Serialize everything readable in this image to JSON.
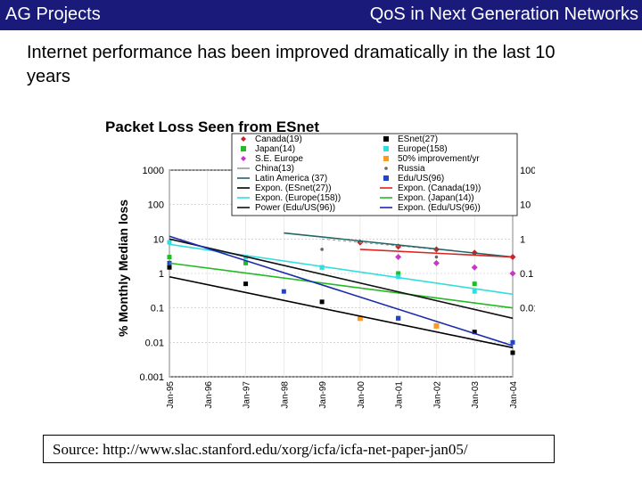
{
  "header": {
    "left": "AG Projects",
    "right": "QoS in Next Generation Networks"
  },
  "headline": "Internet performance has been improved dramatically in the last 10 years",
  "source": "Source: http://www.slac.stanford.edu/xorg/icfa/icfa-net-paper-jan05/",
  "chart_data": {
    "type": "scatter",
    "title": "Packet Loss Seen from ESnet",
    "ylabel": "% Monthly Median loss",
    "xlabel": "",
    "yscale": "log",
    "ylim": [
      0.001,
      1000
    ],
    "left_ticks": [
      "1000",
      "100",
      "10",
      "1",
      "0.1",
      "0.01",
      "0.001"
    ],
    "right_ticks": [
      "100",
      "10",
      "1",
      "0.1",
      "0.01"
    ],
    "x_ticks": [
      "Jan-95",
      "Jan-96",
      "Jan-97",
      "Jan-98",
      "Jan-99",
      "Jan-00",
      "Jan-01",
      "Jan-02",
      "Jan-03",
      "Jan-04"
    ],
    "grid": true,
    "legend_position": "top",
    "series": [
      {
        "name": "Canada(19)",
        "marker": "diamond",
        "color": "#cc2222",
        "values": [
          {
            "x": "Jan-00",
            "y": 8
          },
          {
            "x": "Jan-01",
            "y": 6
          },
          {
            "x": "Jan-02",
            "y": 5
          },
          {
            "x": "Jan-03",
            "y": 4
          },
          {
            "x": "Jan-04",
            "y": 3
          }
        ]
      },
      {
        "name": "ESnet(27)",
        "marker": "square",
        "color": "#000000",
        "values": [
          {
            "x": "Jan-95",
            "y": 1.5
          },
          {
            "x": "Jan-97",
            "y": 0.5
          },
          {
            "x": "Jan-99",
            "y": 0.15
          },
          {
            "x": "Jan-01",
            "y": 0.05
          },
          {
            "x": "Jan-03",
            "y": 0.02
          },
          {
            "x": "Jan-04",
            "y": 0.005
          }
        ]
      },
      {
        "name": "Japan(14)",
        "marker": "square",
        "color": "#22bb22",
        "values": [
          {
            "x": "Jan-95",
            "y": 3
          },
          {
            "x": "Jan-97",
            "y": 2
          },
          {
            "x": "Jan-99",
            "y": 1.5
          },
          {
            "x": "Jan-01",
            "y": 1
          },
          {
            "x": "Jan-03",
            "y": 0.5
          }
        ]
      },
      {
        "name": "Europe(158)",
        "marker": "square",
        "color": "#33dddd",
        "values": [
          {
            "x": "Jan-95",
            "y": 8
          },
          {
            "x": "Jan-97",
            "y": 3
          },
          {
            "x": "Jan-99",
            "y": 1.5
          },
          {
            "x": "Jan-01",
            "y": 0.8
          },
          {
            "x": "Jan-03",
            "y": 0.3
          }
        ]
      },
      {
        "name": "S.E. Europe",
        "marker": "diamond",
        "color": "#cc33cc",
        "values": [
          {
            "x": "Jan-01",
            "y": 3
          },
          {
            "x": "Jan-02",
            "y": 2
          },
          {
            "x": "Jan-03",
            "y": 1.5
          },
          {
            "x": "Jan-04",
            "y": 1
          }
        ]
      },
      {
        "name": "50% improvement/yr",
        "marker": "square",
        "color": "#ff9922",
        "values": [
          {
            "x": "Jan-00",
            "y": 0.05
          },
          {
            "x": "Jan-02",
            "y": 0.03
          }
        ]
      },
      {
        "name": "China(13)",
        "marker": "none",
        "color": "#999999",
        "values": [
          {
            "x": "Jan-99",
            "y": 10
          },
          {
            "x": "Jan-02",
            "y": 5
          }
        ]
      },
      {
        "name": "Russia",
        "marker": "dot",
        "color": "#666666",
        "values": [
          {
            "x": "Jan-99",
            "y": 5
          },
          {
            "x": "Jan-02",
            "y": 3
          }
        ]
      },
      {
        "name": "Latin America (37)",
        "marker": "line",
        "color": "#226666",
        "values": [
          {
            "x": "Jan-98",
            "y": 15
          },
          {
            "x": "Jan-04",
            "y": 3
          }
        ]
      },
      {
        "name": "Edu/US(96)",
        "marker": "square",
        "color": "#2244cc",
        "values": [
          {
            "x": "Jan-95",
            "y": 2
          },
          {
            "x": "Jan-98",
            "y": 0.3
          },
          {
            "x": "Jan-01",
            "y": 0.05
          },
          {
            "x": "Jan-04",
            "y": 0.01
          }
        ]
      },
      {
        "name": "Expon. (ESnet(27))",
        "marker": "line",
        "color": "#000000",
        "values": [
          {
            "x": "Jan-95",
            "y": 0.8
          },
          {
            "x": "Jan-04",
            "y": 0.007
          }
        ]
      },
      {
        "name": "Expon. (Canada(19))",
        "marker": "line",
        "color": "#dd2222",
        "values": [
          {
            "x": "Jan-00",
            "y": 5
          },
          {
            "x": "Jan-04",
            "y": 3
          }
        ]
      },
      {
        "name": "Expon. (Europe(158))",
        "marker": "line",
        "color": "#33dddd",
        "values": [
          {
            "x": "Jan-95",
            "y": 7
          },
          {
            "x": "Jan-04",
            "y": 0.25
          }
        ]
      },
      {
        "name": "Expon. (Japan(14))",
        "marker": "line",
        "color": "#22bb22",
        "values": [
          {
            "x": "Jan-95",
            "y": 2
          },
          {
            "x": "Jan-04",
            "y": 0.1
          }
        ]
      },
      {
        "name": "Power (Edu/US(96))",
        "marker": "line",
        "color": "#111111",
        "values": [
          {
            "x": "Jan-95",
            "y": 10
          },
          {
            "x": "Jan-04",
            "y": 0.05
          }
        ]
      },
      {
        "name": "Expon. (Edu/US(96))",
        "marker": "line",
        "color": "#1a2aaa",
        "values": [
          {
            "x": "Jan-95",
            "y": 12
          },
          {
            "x": "Jan-04",
            "y": 0.008
          }
        ]
      }
    ]
  }
}
